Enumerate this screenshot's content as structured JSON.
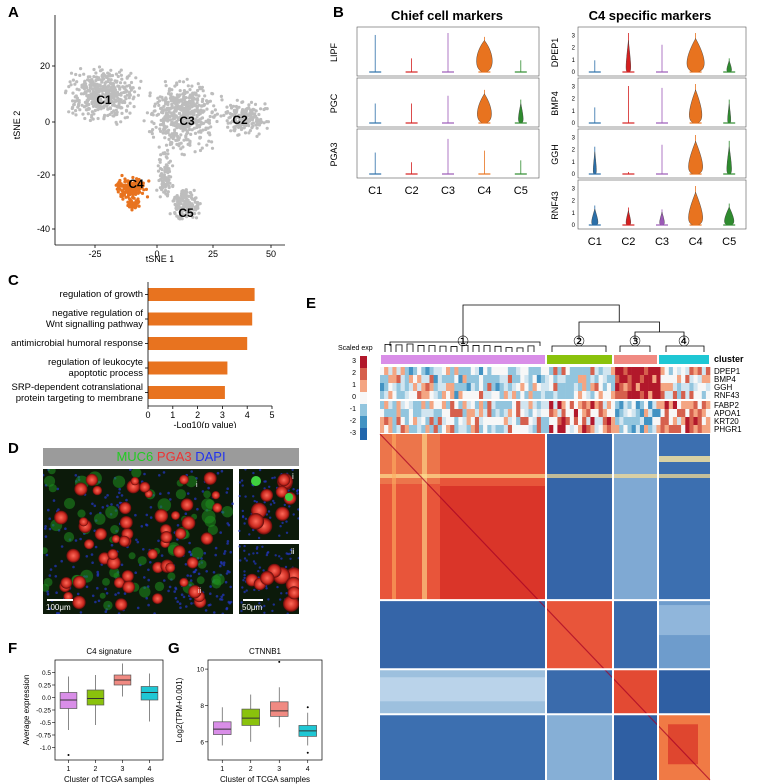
{
  "panels": {
    "a": "A",
    "b": "B",
    "c": "C",
    "d": "D",
    "e": "E",
    "f": "F",
    "g": "G"
  },
  "panel_a": {
    "xlabel": "tSNE 1",
    "ylabel": "tSNE 2",
    "xticks": [
      "-25",
      "0",
      "25",
      "50"
    ],
    "yticks": [
      "20",
      "0",
      "-20",
      "-40"
    ],
    "clusters": [
      "C1",
      "C2",
      "C3",
      "C4",
      "C5"
    ],
    "colors": {
      "grey": "#bdbdbd",
      "highlight": "#e8731f"
    }
  },
  "panel_b": {
    "left_title": "Chief cell markers",
    "right_title": "C4 specific markers",
    "left_genes": [
      "LIPF",
      "PGC",
      "PGA3"
    ],
    "right_genes": [
      "DPEP1",
      "BMP4",
      "GGH",
      "RNF43"
    ],
    "xcats": [
      "C1",
      "C2",
      "C3",
      "C4",
      "C5"
    ],
    "yticks": [
      "0",
      "1",
      "2",
      "3"
    ]
  },
  "chart_data": [
    {
      "type": "bar",
      "title": "",
      "xlabel": "-Log10(p value)",
      "xlim": [
        0,
        5
      ],
      "xticks": [
        "0",
        "1",
        "2",
        "3",
        "4",
        "5"
      ],
      "categories": [
        "regulation of growth",
        "negative regulation of Wnt signalling pathway",
        "antimicrobial humoral response",
        "regulation of leukocyte apoptotic process",
        "SRP-dependent cotranslational protein targeting to membrane"
      ],
      "category_lines": [
        [
          "regulation of growth"
        ],
        [
          "negative regulation of",
          "Wnt signalling pathway"
        ],
        [
          "antimicrobial humoral response"
        ],
        [
          "regulation of leukocyte",
          "apoptotic process"
        ],
        [
          "SRP-dependent cotranslational",
          "protein targeting to membrane"
        ]
      ],
      "values": [
        4.3,
        4.2,
        4.0,
        3.2,
        3.1
      ],
      "color": "#e8731f"
    },
    {
      "type": "box",
      "title": "C4 signature",
      "xlabel": "Cluster of TCGA samples",
      "ylabel": "Average expression",
      "categories": [
        "1",
        "2",
        "3",
        "4"
      ],
      "ylim": [
        -1.25,
        0.75
      ],
      "yticks": [
        "0.5",
        "0.25",
        "0.0",
        "-0.25",
        "-0.5",
        "-0.75",
        "-1.0"
      ],
      "boxes": [
        {
          "q1": -0.22,
          "median": -0.05,
          "q3": 0.1,
          "min": -0.65,
          "max": 0.42,
          "outliers": [
            -1.15
          ]
        },
        {
          "q1": -0.15,
          "median": -0.02,
          "q3": 0.15,
          "min": -0.55,
          "max": 0.45,
          "outliers": []
        },
        {
          "q1": 0.25,
          "median": 0.35,
          "q3": 0.45,
          "min": 0.02,
          "max": 0.68,
          "outliers": []
        },
        {
          "q1": -0.05,
          "median": 0.1,
          "q3": 0.22,
          "min": -0.48,
          "max": 0.48,
          "outliers": []
        }
      ],
      "colors": [
        "#d98ee8",
        "#8ac20c",
        "#f08a82",
        "#1fc7d4"
      ]
    },
    {
      "type": "box",
      "title": "CTNNB1",
      "xlabel": "Cluster of TCGA samples",
      "ylabel": "Log2(TPM+0.001)",
      "categories": [
        "1",
        "2",
        "3",
        "4"
      ],
      "ylim": [
        5.0,
        10.5
      ],
      "yticks": [
        "10",
        "8",
        "6"
      ],
      "boxes": [
        {
          "q1": 6.4,
          "median": 6.7,
          "q3": 7.1,
          "min": 5.8,
          "max": 7.9,
          "outliers": []
        },
        {
          "q1": 6.9,
          "median": 7.3,
          "q3": 7.8,
          "min": 6.0,
          "max": 8.6,
          "outliers": []
        },
        {
          "q1": 7.4,
          "median": 7.7,
          "q3": 8.2,
          "min": 6.8,
          "max": 9.0,
          "outliers": [
            10.4
          ]
        },
        {
          "q1": 6.3,
          "median": 6.6,
          "q3": 6.9,
          "min": 5.8,
          "max": 7.6,
          "outliers": [
            7.9,
            5.4
          ]
        }
      ],
      "colors": [
        "#d98ee8",
        "#8ac20c",
        "#f08a82",
        "#1fc7d4"
      ]
    }
  ],
  "panel_d": {
    "stain_labels": [
      "MUC6",
      "PGA3",
      "DAPI"
    ],
    "stain_colors": [
      "#22cc22",
      "#ee3333",
      "#2233ee"
    ],
    "scale_main": "100μm",
    "scale_inset": "50μm",
    "inset_labels": [
      "i",
      "ii"
    ],
    "mark_label": "ii"
  },
  "panel_e": {
    "legend_title": "Scaled exp",
    "legend_ticks": [
      "3",
      "2",
      "1",
      "0",
      "-1",
      "-2",
      "-3"
    ],
    "cluster_label": "cluster",
    "cluster_numbers": [
      "①",
      "②",
      "③",
      "④"
    ],
    "cluster_colors": [
      "#d98ee8",
      "#8ac20c",
      "#f08a82",
      "#1fc7d4"
    ],
    "genes_top": [
      "DPEP1",
      "BMP4",
      "GGH",
      "RNF43"
    ],
    "genes_bottom": [
      "FABP2",
      "APOA1",
      "KRT20",
      "PHGR1"
    ]
  }
}
